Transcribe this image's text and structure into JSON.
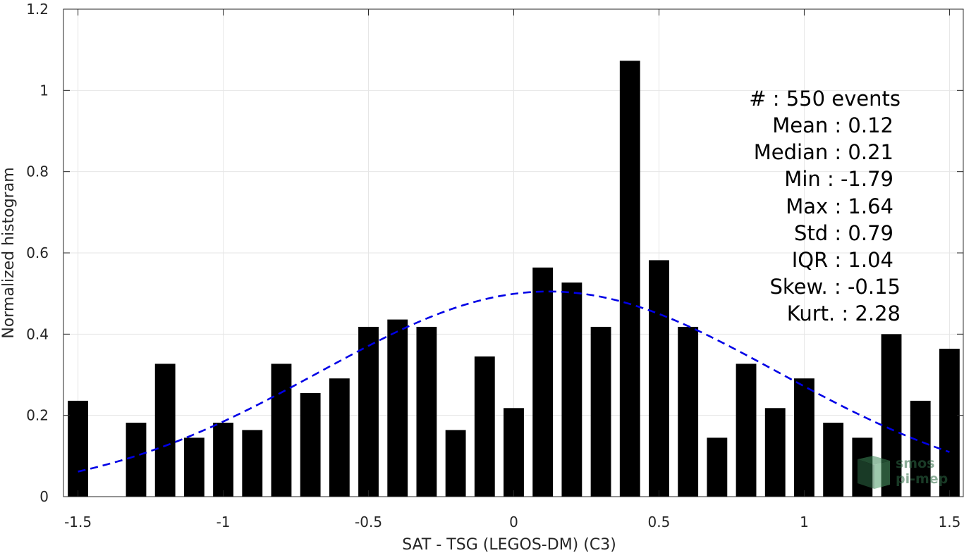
{
  "chart_data": {
    "type": "bar",
    "xlabel": "SAT - TSG (LEGOS-DM) (C3)",
    "ylabel": "Normalized histogram",
    "xlim": [
      -1.55,
      1.55
    ],
    "ylim": [
      0,
      1.2
    ],
    "grid": true,
    "xticks": [
      -1.5,
      -1,
      -0.5,
      0,
      0.5,
      1,
      1.5
    ],
    "xtick_labels": [
      "-1.5",
      "-1",
      "-0.5",
      "0",
      "0.5",
      "1",
      "1.5"
    ],
    "yticks": [
      0,
      0.2,
      0.4,
      0.6,
      0.8,
      1,
      1.2
    ],
    "ytick_labels": [
      "0",
      "0.2",
      "0.4",
      "0.6",
      "0.8",
      "1",
      "1.2"
    ],
    "bar_color": "#000000",
    "bar_width": 0.07,
    "bins": [
      -1.5,
      -1.4,
      -1.3,
      -1.2,
      -1.1,
      -1.0,
      -0.9,
      -0.8,
      -0.7,
      -0.6,
      -0.5,
      -0.4,
      -0.3,
      -0.2,
      -0.1,
      0.0,
      0.1,
      0.2,
      0.3,
      0.4,
      0.5,
      0.6,
      0.7,
      0.8,
      0.9,
      1.0,
      1.1,
      1.2,
      1.3,
      1.4,
      1.5
    ],
    "values": [
      0.236,
      0,
      0.182,
      0.327,
      0.145,
      0.182,
      0.164,
      0.327,
      0.255,
      0.291,
      0.418,
      0.436,
      0.418,
      0.164,
      0.345,
      0.218,
      0.564,
      0.527,
      0.418,
      1.073,
      0.582,
      0.418,
      0.145,
      0.327,
      0.218,
      0.291,
      0.182,
      0.145,
      0.4,
      0.236,
      0.364
    ],
    "fit": {
      "type": "normal",
      "mean": 0.12,
      "std": 0.79,
      "x_range": [
        -1.5,
        1.5
      ],
      "color": "#0000e6",
      "style": "dashed"
    },
    "annotations": [
      "#  : 550 events",
      "Mean : 0.12",
      "Median : 0.21",
      "Min : -1.79",
      "Max : 1.64",
      "Std : 0.79",
      "IQR : 1.04",
      "Skew. : -0.15",
      "Kurt. : 2.28"
    ]
  },
  "watermark": {
    "line1": "smos",
    "line2": "pi-mep",
    "color": "#2e6b45"
  }
}
